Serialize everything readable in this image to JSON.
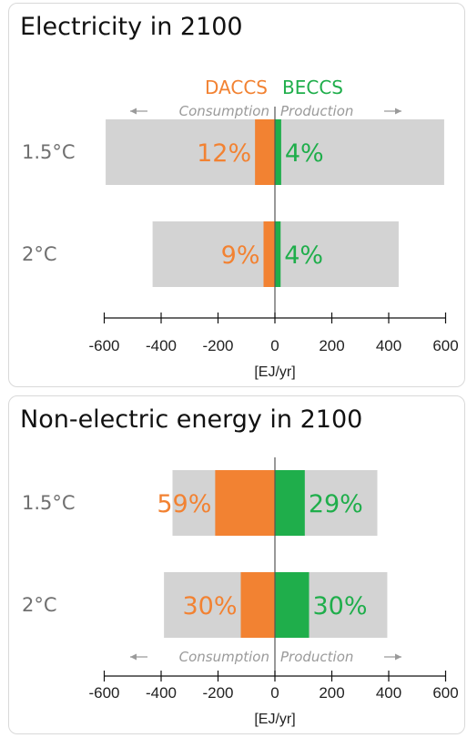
{
  "colors": {
    "daccs": "#f28232",
    "beccs": "#1fae4b",
    "total_bar": "#d3d3d3",
    "axis": "#555555"
  },
  "chart_data": [
    {
      "type": "bar",
      "title": "Electricity in 2100",
      "legend": {
        "left": "DACCS",
        "right": "BECCS"
      },
      "direction_labels": {
        "left": "Consumption",
        "right": "Production"
      },
      "xlabel": "[EJ/yr]",
      "xlim": [
        -600,
        600
      ],
      "xticks": [
        "-600",
        "-400",
        "-200",
        "0",
        "200",
        "400",
        "600"
      ],
      "categories": [
        "1.5°C",
        "2°C"
      ],
      "series": [
        {
          "name": "Consumption",
          "values": [
            -595,
            -430
          ]
        },
        {
          "name": "Production",
          "values": [
            595,
            435
          ]
        },
        {
          "name": "DACCS",
          "values": [
            -70,
            -40
          ]
        },
        {
          "name": "BECCS",
          "values": [
            22,
            20
          ]
        }
      ],
      "data_labels": {
        "DACCS": [
          "12%",
          "9%"
        ],
        "BECCS": [
          "4%",
          "4%"
        ]
      }
    },
    {
      "type": "bar",
      "title": "Non-electric energy in 2100",
      "direction_labels": {
        "left": "Consumption",
        "right": "Production"
      },
      "xlabel": "[EJ/yr]",
      "xlim": [
        -600,
        600
      ],
      "xticks": [
        "-600",
        "-400",
        "-200",
        "0",
        "200",
        "400",
        "600"
      ],
      "categories": [
        "1.5°C",
        "2°C"
      ],
      "series": [
        {
          "name": "Consumption",
          "values": [
            -360,
            -390
          ]
        },
        {
          "name": "Production",
          "values": [
            360,
            395
          ]
        },
        {
          "name": "DACCS",
          "values": [
            -210,
            -120
          ]
        },
        {
          "name": "BECCS",
          "values": [
            105,
            120
          ]
        }
      ],
      "data_labels": {
        "DACCS": [
          "59%",
          "30%"
        ],
        "BECCS": [
          "29%",
          "30%"
        ]
      }
    }
  ]
}
